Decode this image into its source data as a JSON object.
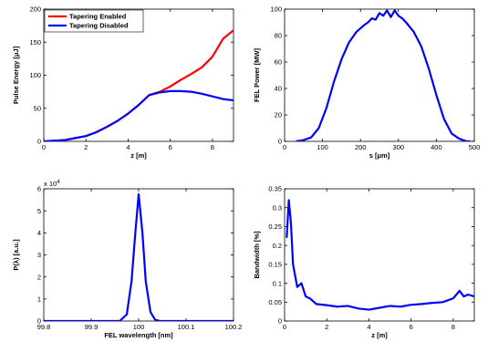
{
  "chart_data": [
    {
      "type": "line",
      "xlabel": "z [m]",
      "ylabel": "Pulse Energy [μJ]",
      "xlim": [
        0,
        9
      ],
      "ylim": [
        0,
        200
      ],
      "xticks": [
        "0",
        "2",
        "4",
        "6",
        "8"
      ],
      "yticks": [
        "0",
        "50",
        "100",
        "150",
        "200"
      ],
      "legend": "top-left",
      "series": [
        {
          "name": "Tapering Enabled",
          "color": "#ff0000",
          "x": [
            0,
            1,
            1.5,
            2,
            2.5,
            3,
            3.5,
            4,
            4.5,
            5,
            5.5,
            6,
            6.5,
            7,
            7.5,
            8,
            8.5,
            9
          ],
          "y": [
            0,
            2,
            5,
            8,
            14,
            22,
            31,
            42,
            55,
            70,
            75,
            83,
            93,
            102,
            112,
            128,
            155,
            168
          ]
        },
        {
          "name": "Tapering Disabled",
          "color": "#0000ff",
          "x": [
            0,
            1,
            1.5,
            2,
            2.5,
            3,
            3.5,
            4,
            4.5,
            5,
            5.5,
            6,
            6.5,
            7,
            7.5,
            8,
            8.5,
            9
          ],
          "y": [
            0,
            2,
            5,
            8,
            14,
            22,
            31,
            42,
            55,
            70,
            74,
            76,
            76,
            75,
            72,
            68,
            64,
            62
          ]
        }
      ]
    },
    {
      "type": "line",
      "xlabel": "s [μm]",
      "ylabel": "FEL Power [MW]",
      "xlim": [
        0,
        500
      ],
      "ylim": [
        0,
        100
      ],
      "xticks": [
        "0",
        "100",
        "200",
        "300",
        "400",
        "500"
      ],
      "yticks": [
        "0",
        "20",
        "40",
        "60",
        "80",
        "100"
      ],
      "series": [
        {
          "color": "#0000ff",
          "x": [
            30,
            50,
            70,
            90,
            110,
            130,
            150,
            170,
            190,
            210,
            220,
            230,
            240,
            250,
            260,
            270,
            280,
            290,
            300,
            310,
            320,
            340,
            360,
            380,
            400,
            420,
            440,
            460,
            480,
            490
          ],
          "y": [
            0,
            1,
            3,
            10,
            25,
            45,
            62,
            75,
            83,
            88,
            90,
            93,
            92,
            97,
            95,
            99,
            94,
            99,
            95,
            93,
            90,
            83,
            72,
            55,
            35,
            17,
            6,
            2,
            0,
            0
          ]
        }
      ]
    },
    {
      "type": "line",
      "xlabel": "FEL wavelength [nm]",
      "ylabel": "P(λ) [a.u.]",
      "xlim": [
        99.8,
        100.2
      ],
      "ylim": [
        0,
        6
      ],
      "multiplier": "x 10",
      "multiplier_exp": "4",
      "xticks": [
        "99.8",
        "99.9",
        "100",
        "100.1",
        "100.2"
      ],
      "yticks": [
        "0",
        "1",
        "2",
        "3",
        "4",
        "5",
        "6"
      ],
      "series": [
        {
          "color": "#0000ff",
          "x": [
            99.8,
            99.96,
            99.975,
            99.985,
            99.993,
            100.0,
            100.008,
            100.015,
            100.025,
            100.035,
            100.045,
            100.2
          ],
          "y": [
            0,
            0,
            0.3,
            1.8,
            4.0,
            5.75,
            4.0,
            1.8,
            0.4,
            0.05,
            0,
            0
          ]
        }
      ]
    },
    {
      "type": "line",
      "xlabel": "z [m]",
      "ylabel": "Bandwidth [%]",
      "xlim": [
        0,
        9
      ],
      "ylim": [
        0,
        0.35
      ],
      "xticks": [
        "0",
        "2",
        "4",
        "6",
        "8"
      ],
      "yticks": [
        "0",
        "0.05",
        "0.1",
        "0.15",
        "0.2",
        "0.25",
        "0.3",
        "0.35"
      ],
      "series": [
        {
          "color": "#0000ff",
          "x": [
            0.1,
            0.2,
            0.3,
            0.4,
            0.5,
            0.6,
            0.8,
            1.0,
            1.2,
            1.5,
            2.0,
            2.5,
            3.0,
            3.5,
            4.0,
            4.5,
            5.0,
            5.5,
            6.0,
            6.5,
            7.0,
            7.5,
            8.0,
            8.3,
            8.5,
            8.7,
            9.0
          ],
          "y": [
            0.22,
            0.32,
            0.26,
            0.15,
            0.12,
            0.09,
            0.1,
            0.065,
            0.06,
            0.045,
            0.042,
            0.038,
            0.04,
            0.033,
            0.03,
            0.035,
            0.04,
            0.038,
            0.043,
            0.045,
            0.048,
            0.05,
            0.06,
            0.08,
            0.065,
            0.07,
            0.065
          ]
        }
      ]
    }
  ]
}
